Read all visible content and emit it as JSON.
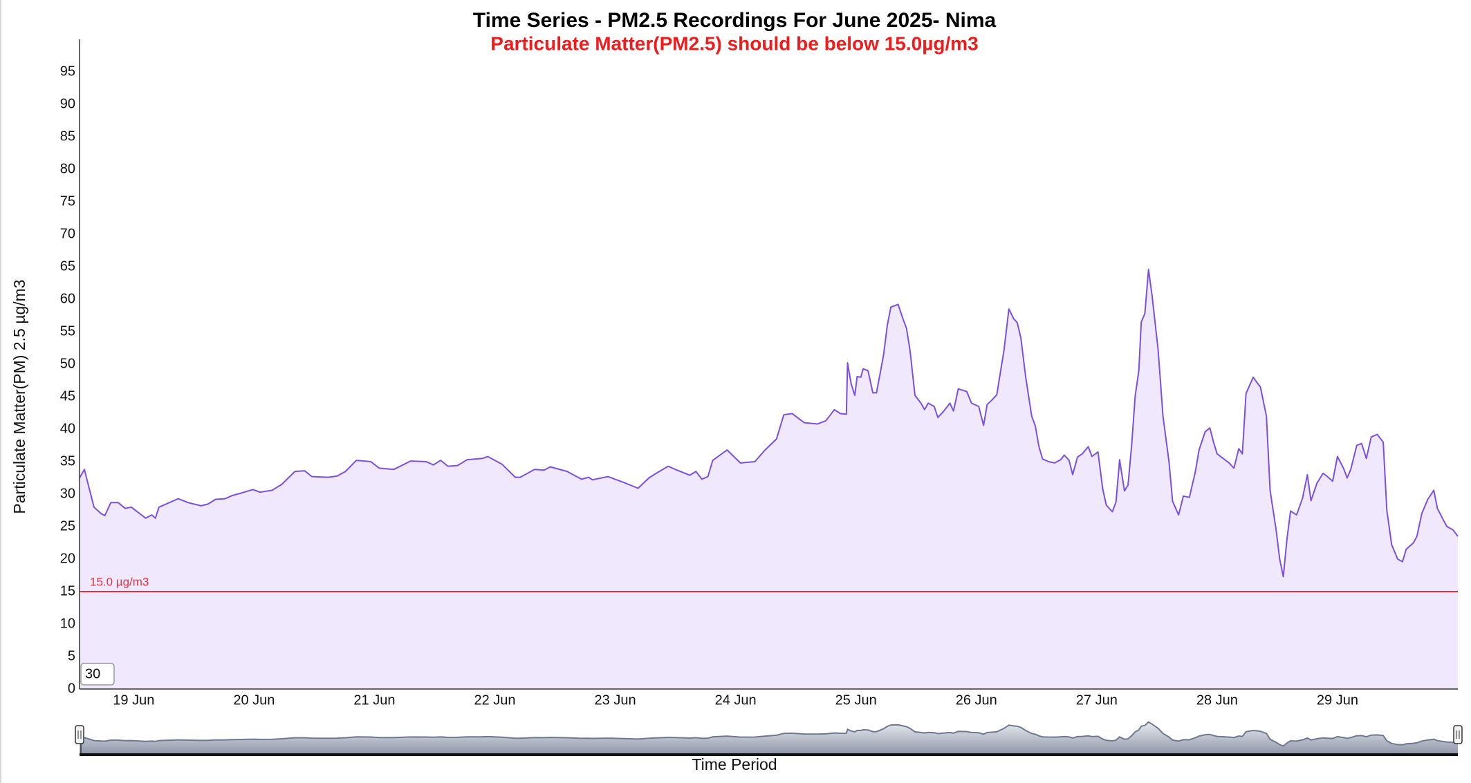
{
  "chart_data": {
    "type": "area",
    "title": "Time Series - PM2.5 Recordings For June 2025- Nima",
    "subtitle": "Particulate Matter(PM2.5) should be below 15.0µg/m3",
    "y_label": "Particulate Matter(PM) 2.5 µg/m3",
    "x_label": "Time Period",
    "range_input": "30",
    "color": "#7b4fe3",
    "fill": "#f0e8fd",
    "threshold": {
      "value": 15,
      "label": "15.0 µg/m3",
      "color": "#e8303a"
    },
    "xlim": [
      18.55,
      30.0
    ],
    "xticks": [
      {
        "value": 19,
        "label": "19 Jun"
      },
      {
        "value": 20,
        "label": "20 Jun"
      },
      {
        "value": 21,
        "label": "21 Jun"
      },
      {
        "value": 22,
        "label": "22 Jun"
      },
      {
        "value": 23,
        "label": "23 Jun"
      },
      {
        "value": 24,
        "label": "24 Jun"
      },
      {
        "value": 25,
        "label": "25 Jun"
      },
      {
        "value": 26,
        "label": "26 Jun"
      },
      {
        "value": 27,
        "label": "27 Jun"
      },
      {
        "value": 28,
        "label": "28 Jun"
      },
      {
        "value": 29,
        "label": "29 Jun"
      }
    ],
    "ylim": [
      0,
      100
    ],
    "yticks": [
      0,
      5,
      10,
      15,
      20,
      25,
      30,
      35,
      40,
      45,
      50,
      55,
      60,
      65,
      70,
      75,
      80,
      85,
      90,
      95
    ],
    "x": [
      18.55,
      18.59,
      18.67,
      18.73,
      18.76,
      18.81,
      18.87,
      18.93,
      18.98,
      19.1,
      19.15,
      19.18,
      19.21,
      19.37,
      19.45,
      19.56,
      19.62,
      19.68,
      19.76,
      19.82,
      19.9,
      19.99,
      20.05,
      20.15,
      20.23,
      20.34,
      20.42,
      20.48,
      20.62,
      20.69,
      20.76,
      20.85,
      20.97,
      21.04,
      21.16,
      21.3,
      21.43,
      21.49,
      21.55,
      21.61,
      21.69,
      21.77,
      21.9,
      21.94,
      22.06,
      22.17,
      22.21,
      22.33,
      22.41,
      22.46,
      22.6,
      22.72,
      22.78,
      22.81,
      22.94,
      23.07,
      23.19,
      23.28,
      23.34,
      23.44,
      23.5,
      23.62,
      23.67,
      23.72,
      23.77,
      23.81,
      23.93,
      24.04,
      24.16,
      24.24,
      24.34,
      24.4,
      24.47,
      24.57,
      24.68,
      24.75,
      24.82,
      24.87,
      24.92,
      24.93,
      24.96,
      24.99,
      25.01,
      25.04,
      25.06,
      25.1,
      25.14,
      25.17,
      25.2,
      25.23,
      25.26,
      25.29,
      25.35,
      25.39,
      25.42,
      25.45,
      25.49,
      25.54,
      25.57,
      25.6,
      25.65,
      25.68,
      25.73,
      25.78,
      25.81,
      25.85,
      25.92,
      25.96,
      26.02,
      26.06,
      26.09,
      26.13,
      26.17,
      26.2,
      26.23,
      26.27,
      26.31,
      26.34,
      26.37,
      26.41,
      26.46,
      26.49,
      26.52,
      26.55,
      26.6,
      26.65,
      26.7,
      26.73,
      26.77,
      26.8,
      26.84,
      26.88,
      26.93,
      26.96,
      27.01,
      27.05,
      27.08,
      27.13,
      27.16,
      27.19,
      27.23,
      27.26,
      27.29,
      27.32,
      27.35,
      27.37,
      27.4,
      27.43,
      27.46,
      27.51,
      27.55,
      27.6,
      27.63,
      27.68,
      27.72,
      27.77,
      27.82,
      27.85,
      27.9,
      27.94,
      27.97,
      28.0,
      28.05,
      28.1,
      28.14,
      28.18,
      28.21,
      28.24,
      28.3,
      28.33,
      28.36,
      28.41,
      28.44,
      28.49,
      28.52,
      28.55,
      28.58,
      28.61,
      28.66,
      28.71,
      28.75,
      28.78,
      28.83,
      28.88,
      28.91,
      28.96,
      29.0,
      29.05,
      29.08,
      29.11,
      29.16,
      29.2,
      29.24,
      29.28,
      29.33,
      29.38,
      29.41,
      29.45,
      29.5,
      29.54,
      29.57,
      29.63,
      29.66,
      29.7,
      29.75,
      29.8,
      29.83,
      29.88,
      29.91,
      29.96,
      30.0
    ],
    "values": [
      32.5,
      33.8,
      28,
      27,
      26.7,
      28.7,
      28.7,
      27.8,
      28,
      26.3,
      26.8,
      26.3,
      28,
      29.3,
      28.7,
      28.2,
      28.5,
      29.2,
      29.3,
      29.8,
      30.2,
      30.7,
      30.3,
      30.6,
      31.5,
      33.5,
      33.6,
      32.7,
      32.6,
      32.8,
      33.5,
      35.2,
      35.0,
      34,
      33.8,
      35.1,
      35,
      34.5,
      35.2,
      34.3,
      34.4,
      35.3,
      35.5,
      35.8,
      34.6,
      32.6,
      32.6,
      33.8,
      33.7,
      34.2,
      33.5,
      32.3,
      32.6,
      32.2,
      32.7,
      31.8,
      30.9,
      32.5,
      33.2,
      34.3,
      33.8,
      32.9,
      33.5,
      32.3,
      32.7,
      35.2,
      36.8,
      34.8,
      35,
      36.7,
      38.5,
      42.2,
      42.4,
      41,
      40.8,
      41.3,
      43,
      42.4,
      42.3,
      50.2,
      47,
      45.2,
      48.1,
      48,
      49.3,
      49,
      45.6,
      45.6,
      48.5,
      51.5,
      56,
      58.8,
      59.2,
      57,
      55.5,
      52,
      45.2,
      44,
      43,
      44,
      43.5,
      41.8,
      42.8,
      44,
      42.8,
      46.2,
      45.8,
      44,
      43.5,
      40.6,
      43.8,
      44.5,
      45.3,
      48.8,
      52.2,
      58.5,
      57,
      56.4,
      54,
      48,
      42,
      40.5,
      37.3,
      35.4,
      35,
      34.8,
      35.3,
      36,
      35.2,
      33,
      35.7,
      36.2,
      37.3,
      35.8,
      36.5,
      30.8,
      28.3,
      27.3,
      28.8,
      35.3,
      30.5,
      31.4,
      37.5,
      45.2,
      49,
      56.5,
      57.8,
      64.6,
      60.5,
      52.2,
      42,
      35,
      28.9,
      26.8,
      29.7,
      29.5,
      33.5,
      36.8,
      39.6,
      40.2,
      38,
      36.2,
      35.5,
      34.8,
      34,
      37,
      36.2,
      45.5,
      48,
      47.2,
      46.5,
      42,
      30.6,
      24.5,
      20,
      17.3,
      23,
      27.4,
      26.8,
      29.4,
      33,
      29,
      31.7,
      33.2,
      32.8,
      32,
      35.8,
      34,
      32.5,
      33.8,
      37.5,
      37.8,
      35.5,
      38.8,
      39.2,
      38,
      27.5,
      22.2,
      20,
      19.6,
      21.5,
      22.5,
      23.5,
      27,
      29.2,
      30.6,
      27.8,
      26,
      25,
      24.5,
      23.5
    ]
  }
}
